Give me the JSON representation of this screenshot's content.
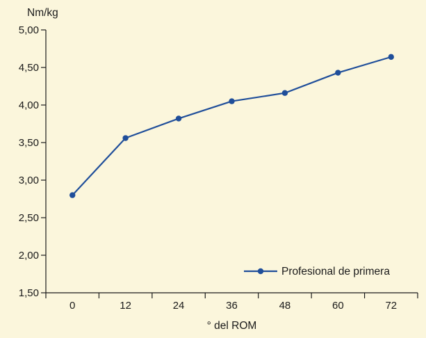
{
  "chart_data": {
    "type": "line",
    "xlabel": "° del ROM",
    "ylabel": "Nm/kg",
    "x": [
      0,
      12,
      24,
      36,
      48,
      60,
      72
    ],
    "categories": [
      "0",
      "12",
      "24",
      "36",
      "48",
      "60",
      "72"
    ],
    "y_ticks": [
      "1,50",
      "2,00",
      "2,50",
      "3,00",
      "3,50",
      "4,00",
      "4,50",
      "5,00"
    ],
    "y_tick_values": [
      1.5,
      2.0,
      2.5,
      3.0,
      3.5,
      4.0,
      4.5,
      5.0
    ],
    "ylim": [
      1.5,
      5.0
    ],
    "grid": false,
    "legend_position": "bottom-right",
    "series": [
      {
        "name": "Profesional de primera",
        "values": [
          2.8,
          3.56,
          3.82,
          4.05,
          4.16,
          4.43,
          4.64
        ],
        "color": "#1F4E9A"
      }
    ]
  },
  "colors": {
    "background": "#FBF6DC",
    "axis": "#1a1a1a",
    "series": "#1F4E9A"
  }
}
